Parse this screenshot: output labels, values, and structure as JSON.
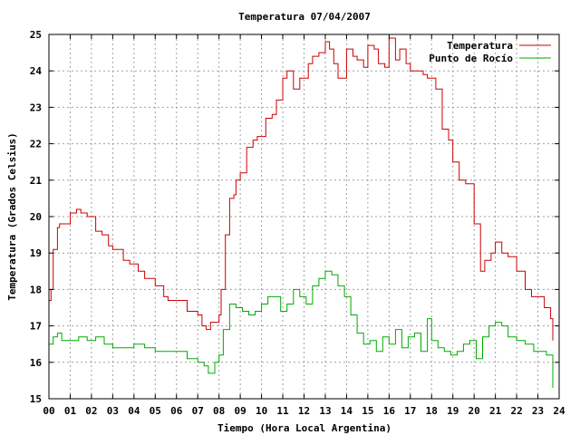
{
  "chart_data": {
    "type": "line",
    "title": "Temperatura 07/04/2007",
    "xlabel": "Tiempo (Hora Local Argentina)",
    "ylabel": "Temperatura (Grados Celsius)",
    "xlim": [
      0,
      24
    ],
    "ylim": [
      15,
      25
    ],
    "x_tick_labels": [
      "00",
      "01",
      "02",
      "03",
      "04",
      "05",
      "06",
      "07",
      "08",
      "09",
      "10",
      "11",
      "12",
      "13",
      "14",
      "15",
      "16",
      "17",
      "18",
      "19",
      "20",
      "21",
      "22",
      "23",
      "24"
    ],
    "y_ticks": [
      15,
      16,
      17,
      18,
      19,
      20,
      21,
      22,
      23,
      24,
      25
    ],
    "grid": true,
    "legend_position": "top-right",
    "series": [
      {
        "name": "Temperatura",
        "color": "#cc0000",
        "x": [
          0,
          0.1,
          0.2,
          0.4,
          0.5,
          1.0,
          1.3,
          1.5,
          1.8,
          2.2,
          2.5,
          2.8,
          3.0,
          3.5,
          3.8,
          4.2,
          4.5,
          5.0,
          5.4,
          5.6,
          6.0,
          6.5,
          7.0,
          7.2,
          7.4,
          7.6,
          7.9,
          8.0,
          8.1,
          8.3,
          8.5,
          8.7,
          8.8,
          9.0,
          9.3,
          9.6,
          9.8,
          10.2,
          10.5,
          10.7,
          11.0,
          11.2,
          11.5,
          11.8,
          12.0,
          12.2,
          12.4,
          12.7,
          13.0,
          13.2,
          13.4,
          13.6,
          14.0,
          14.3,
          14.5,
          14.8,
          15.0,
          15.3,
          15.5,
          15.8,
          16.0,
          16.3,
          16.5,
          16.8,
          17.0,
          17.3,
          17.6,
          17.8,
          18.2,
          18.5,
          18.8,
          19.0,
          19.3,
          19.6,
          20.0,
          20.3,
          20.5,
          20.8,
          21.0,
          21.3,
          21.6,
          22.0,
          22.4,
          22.7,
          23.0,
          23.3,
          23.6,
          23.7
        ],
        "values": [
          17.7,
          18.0,
          19.1,
          19.7,
          19.8,
          20.1,
          20.2,
          20.1,
          20.0,
          19.6,
          19.5,
          19.2,
          19.1,
          18.8,
          18.7,
          18.5,
          18.3,
          18.1,
          17.8,
          17.7,
          17.7,
          17.4,
          17.3,
          17.0,
          16.9,
          17.1,
          17.1,
          17.3,
          18.0,
          19.5,
          20.5,
          20.6,
          21.0,
          21.2,
          21.9,
          22.1,
          22.2,
          22.7,
          22.8,
          23.2,
          23.8,
          24.0,
          23.5,
          23.8,
          23.8,
          24.2,
          24.4,
          24.5,
          24.8,
          24.6,
          24.2,
          23.8,
          24.6,
          24.4,
          24.3,
          24.1,
          24.7,
          24.6,
          24.2,
          24.1,
          24.9,
          24.3,
          24.6,
          24.2,
          24.0,
          24.0,
          23.9,
          23.8,
          23.5,
          22.4,
          22.1,
          21.5,
          21.0,
          20.9,
          19.8,
          18.5,
          18.8,
          19.0,
          19.3,
          19.0,
          18.9,
          18.5,
          18.0,
          17.8,
          17.8,
          17.5,
          17.2,
          16.6
        ]
      },
      {
        "name": "Punto de Rocío",
        "color": "#00aa00",
        "x": [
          0,
          0.2,
          0.4,
          0.6,
          1.0,
          1.4,
          1.8,
          2.2,
          2.6,
          3.0,
          3.5,
          4.0,
          4.5,
          5.0,
          5.5,
          6.0,
          6.5,
          7.0,
          7.3,
          7.5,
          7.8,
          8.0,
          8.2,
          8.5,
          8.8,
          9.1,
          9.4,
          9.7,
          10.0,
          10.3,
          10.6,
          10.9,
          11.2,
          11.5,
          11.8,
          12.1,
          12.4,
          12.7,
          13.0,
          13.3,
          13.6,
          13.9,
          14.2,
          14.5,
          14.8,
          15.1,
          15.4,
          15.7,
          16.0,
          16.3,
          16.6,
          16.9,
          17.2,
          17.5,
          17.8,
          18.0,
          18.3,
          18.6,
          18.9,
          19.2,
          19.5,
          19.8,
          20.1,
          20.4,
          20.7,
          21.0,
          21.3,
          21.6,
          22.0,
          22.4,
          22.8,
          23.1,
          23.4,
          23.7
        ],
        "values": [
          16.5,
          16.7,
          16.8,
          16.6,
          16.6,
          16.7,
          16.6,
          16.7,
          16.5,
          16.4,
          16.4,
          16.5,
          16.4,
          16.3,
          16.3,
          16.3,
          16.1,
          16.0,
          15.9,
          15.7,
          16.0,
          16.2,
          16.9,
          17.6,
          17.5,
          17.4,
          17.3,
          17.4,
          17.6,
          17.8,
          17.8,
          17.4,
          17.6,
          18.0,
          17.8,
          17.6,
          18.1,
          18.3,
          18.5,
          18.4,
          18.1,
          17.8,
          17.3,
          16.8,
          16.5,
          16.6,
          16.3,
          16.7,
          16.5,
          16.9,
          16.4,
          16.7,
          16.8,
          16.3,
          17.2,
          16.6,
          16.4,
          16.3,
          16.2,
          16.3,
          16.5,
          16.6,
          16.1,
          16.7,
          17.0,
          17.1,
          17.0,
          16.7,
          16.6,
          16.5,
          16.3,
          16.3,
          16.2,
          15.3
        ]
      }
    ]
  }
}
